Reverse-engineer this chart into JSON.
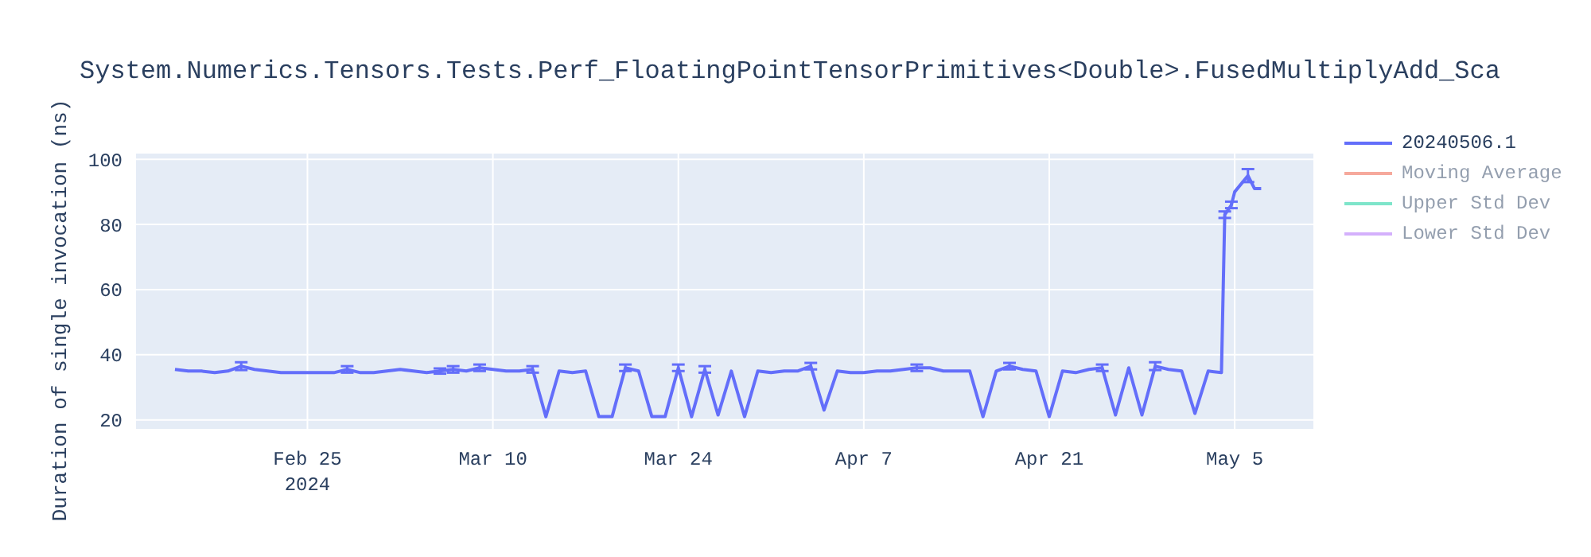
{
  "chart_data": {
    "type": "line",
    "title": "System.Numerics.Tensors.Tests.Perf_FloatingPointTensorPrimitives<Double>.FusedMultiplyAdd_Sca",
    "ylabel": "Duration of single invocation (ns)",
    "x": [
      "2024-02-15",
      "2024-02-16",
      "2024-02-17",
      "2024-02-18",
      "2024-02-19",
      "2024-02-20",
      "2024-02-21",
      "2024-02-22",
      "2024-02-23",
      "2024-02-24",
      "2024-02-25",
      "2024-02-26",
      "2024-02-27",
      "2024-02-28",
      "2024-02-29",
      "2024-03-01",
      "2024-03-02",
      "2024-03-03",
      "2024-03-04",
      "2024-03-05",
      "2024-03-06",
      "2024-03-07",
      "2024-03-08",
      "2024-03-09",
      "2024-03-10",
      "2024-03-11",
      "2024-03-12",
      "2024-03-13",
      "2024-03-14",
      "2024-03-15",
      "2024-03-16",
      "2024-03-17",
      "2024-03-18",
      "2024-03-19",
      "2024-03-20",
      "2024-03-21",
      "2024-03-22",
      "2024-03-23",
      "2024-03-24",
      "2024-03-25",
      "2024-03-26",
      "2024-03-27",
      "2024-03-28",
      "2024-03-29",
      "2024-03-30",
      "2024-03-31",
      "2024-04-01",
      "2024-04-02",
      "2024-04-03",
      "2024-04-04",
      "2024-04-05",
      "2024-04-06",
      "2024-04-07",
      "2024-04-08",
      "2024-04-09",
      "2024-04-10",
      "2024-04-11",
      "2024-04-12",
      "2024-04-13",
      "2024-04-14",
      "2024-04-15",
      "2024-04-16",
      "2024-04-17",
      "2024-04-18",
      "2024-04-19",
      "2024-04-20",
      "2024-04-21",
      "2024-04-22",
      "2024-04-23",
      "2024-04-24",
      "2024-04-25",
      "2024-04-26",
      "2024-04-27",
      "2024-04-28",
      "2024-04-29",
      "2024-04-30",
      "2024-05-01",
      "2024-05-02",
      "2024-05-03",
      "2024-05-04",
      "2024-05-04T06:00",
      "2024-05-04T18:00",
      "2024-05-05",
      "2024-05-06",
      "2024-05-06T12:00",
      "2024-05-07"
    ],
    "series": [
      {
        "name": "20240506.1",
        "color": "#636efa",
        "values": [
          35.5,
          35,
          35,
          34.5,
          35,
          36.5,
          35.5,
          35,
          34.5,
          34.5,
          34.5,
          34.5,
          34.5,
          35.5,
          34.5,
          34.5,
          35,
          35.5,
          35,
          34.5,
          35,
          35.5,
          35,
          36,
          35.5,
          35,
          35,
          35.5,
          21,
          35,
          34.5,
          35,
          21,
          21,
          36,
          35,
          21,
          21,
          36,
          21,
          35.5,
          21.5,
          35,
          21,
          35,
          34.5,
          35,
          35,
          36.5,
          23,
          35,
          34.5,
          34.5,
          35,
          35,
          35.5,
          36,
          36,
          35,
          35,
          35,
          21,
          35,
          36.5,
          35.5,
          35,
          21,
          35,
          34.5,
          35.5,
          36,
          21.5,
          36,
          21.5,
          36.5,
          35.5,
          35,
          22,
          35,
          34.5,
          83,
          86,
          90,
          95,
          91,
          91
        ],
        "errors": [
          null,
          null,
          null,
          null,
          null,
          1.2,
          null,
          null,
          null,
          null,
          null,
          null,
          null,
          1,
          null,
          null,
          null,
          null,
          null,
          null,
          0.8,
          1,
          null,
          1,
          null,
          null,
          null,
          1,
          null,
          null,
          null,
          null,
          null,
          null,
          1,
          null,
          null,
          null,
          1,
          null,
          1,
          null,
          null,
          null,
          null,
          null,
          null,
          null,
          1,
          null,
          null,
          null,
          null,
          null,
          null,
          null,
          1,
          null,
          null,
          null,
          null,
          null,
          null,
          1,
          null,
          null,
          null,
          null,
          null,
          null,
          1,
          null,
          null,
          null,
          1.2,
          null,
          null,
          null,
          null,
          null,
          1,
          1,
          null,
          2,
          null,
          null
        ]
      },
      {
        "name": "Moving Average",
        "color": "#ef553b",
        "values": [
          null,
          null,
          null,
          null,
          null,
          null,
          null,
          null,
          null,
          null,
          null,
          null,
          null,
          null,
          null,
          null,
          null,
          null,
          null,
          null,
          null,
          null,
          null,
          null,
          null,
          null,
          null,
          null,
          null,
          null,
          null,
          null,
          null,
          null,
          null,
          null,
          null,
          null,
          null,
          null,
          null,
          null,
          null,
          null,
          null,
          null,
          null,
          null,
          null,
          null,
          null,
          null,
          null,
          null,
          null,
          null,
          null,
          null,
          null,
          null,
          null,
          null,
          null,
          null,
          null,
          null,
          null,
          null,
          null,
          null,
          null,
          null,
          null,
          null,
          null,
          null,
          null,
          null,
          null,
          null,
          null,
          null,
          null,
          null,
          null,
          null
        ]
      },
      {
        "name": "Upper Std Dev",
        "color": "#00cc96",
        "values": [
          null,
          null,
          null,
          null,
          null,
          null,
          null,
          null,
          null,
          null,
          null,
          null,
          null,
          null,
          null,
          null,
          null,
          null,
          null,
          null,
          null,
          null,
          null,
          null,
          null,
          null,
          null,
          null,
          null,
          null,
          null,
          null,
          null,
          null,
          null,
          null,
          null,
          null,
          null,
          null,
          null,
          null,
          null,
          null,
          null,
          null,
          null,
          null,
          null,
          null,
          null,
          null,
          null,
          null,
          null,
          null,
          null,
          null,
          null,
          null,
          null,
          null,
          null,
          null,
          null,
          null,
          null,
          null,
          null,
          null,
          null,
          null,
          null,
          null,
          null,
          null,
          null,
          null,
          null,
          null,
          null,
          null,
          null,
          null,
          null,
          null
        ]
      },
      {
        "name": "Lower Std Dev",
        "color": "#ab63fa",
        "values": [
          null,
          null,
          null,
          null,
          null,
          null,
          null,
          null,
          null,
          null,
          null,
          null,
          null,
          null,
          null,
          null,
          null,
          null,
          null,
          null,
          null,
          null,
          null,
          null,
          null,
          null,
          null,
          null,
          null,
          null,
          null,
          null,
          null,
          null,
          null,
          null,
          null,
          null,
          null,
          null,
          null,
          null,
          null,
          null,
          null,
          null,
          null,
          null,
          null,
          null,
          null,
          null,
          null,
          null,
          null,
          null,
          null,
          null,
          null,
          null,
          null,
          null,
          null,
          null,
          null,
          null,
          null,
          null,
          null,
          null,
          null,
          null,
          null,
          null,
          null,
          null,
          null,
          null,
          null,
          null,
          null,
          null,
          null,
          null,
          null,
          null
        ]
      }
    ],
    "xlim": [
      "2024-02-12",
      "2024-05-11"
    ],
    "xticks": [
      {
        "value": "2024-02-25",
        "label": "Feb 25\n2024"
      },
      {
        "value": "2024-03-10",
        "label": "Mar 10"
      },
      {
        "value": "2024-03-24",
        "label": "Mar 24"
      },
      {
        "value": "2024-04-07",
        "label": "Apr 7"
      },
      {
        "value": "2024-04-21",
        "label": "Apr 21"
      },
      {
        "value": "2024-05-05",
        "label": "May 5"
      }
    ],
    "ylim": [
      17,
      102
    ],
    "yticks": [
      20,
      40,
      60,
      80,
      100
    ],
    "grid": true,
    "legend": "top right",
    "marker": "none",
    "line_style": "solid"
  }
}
